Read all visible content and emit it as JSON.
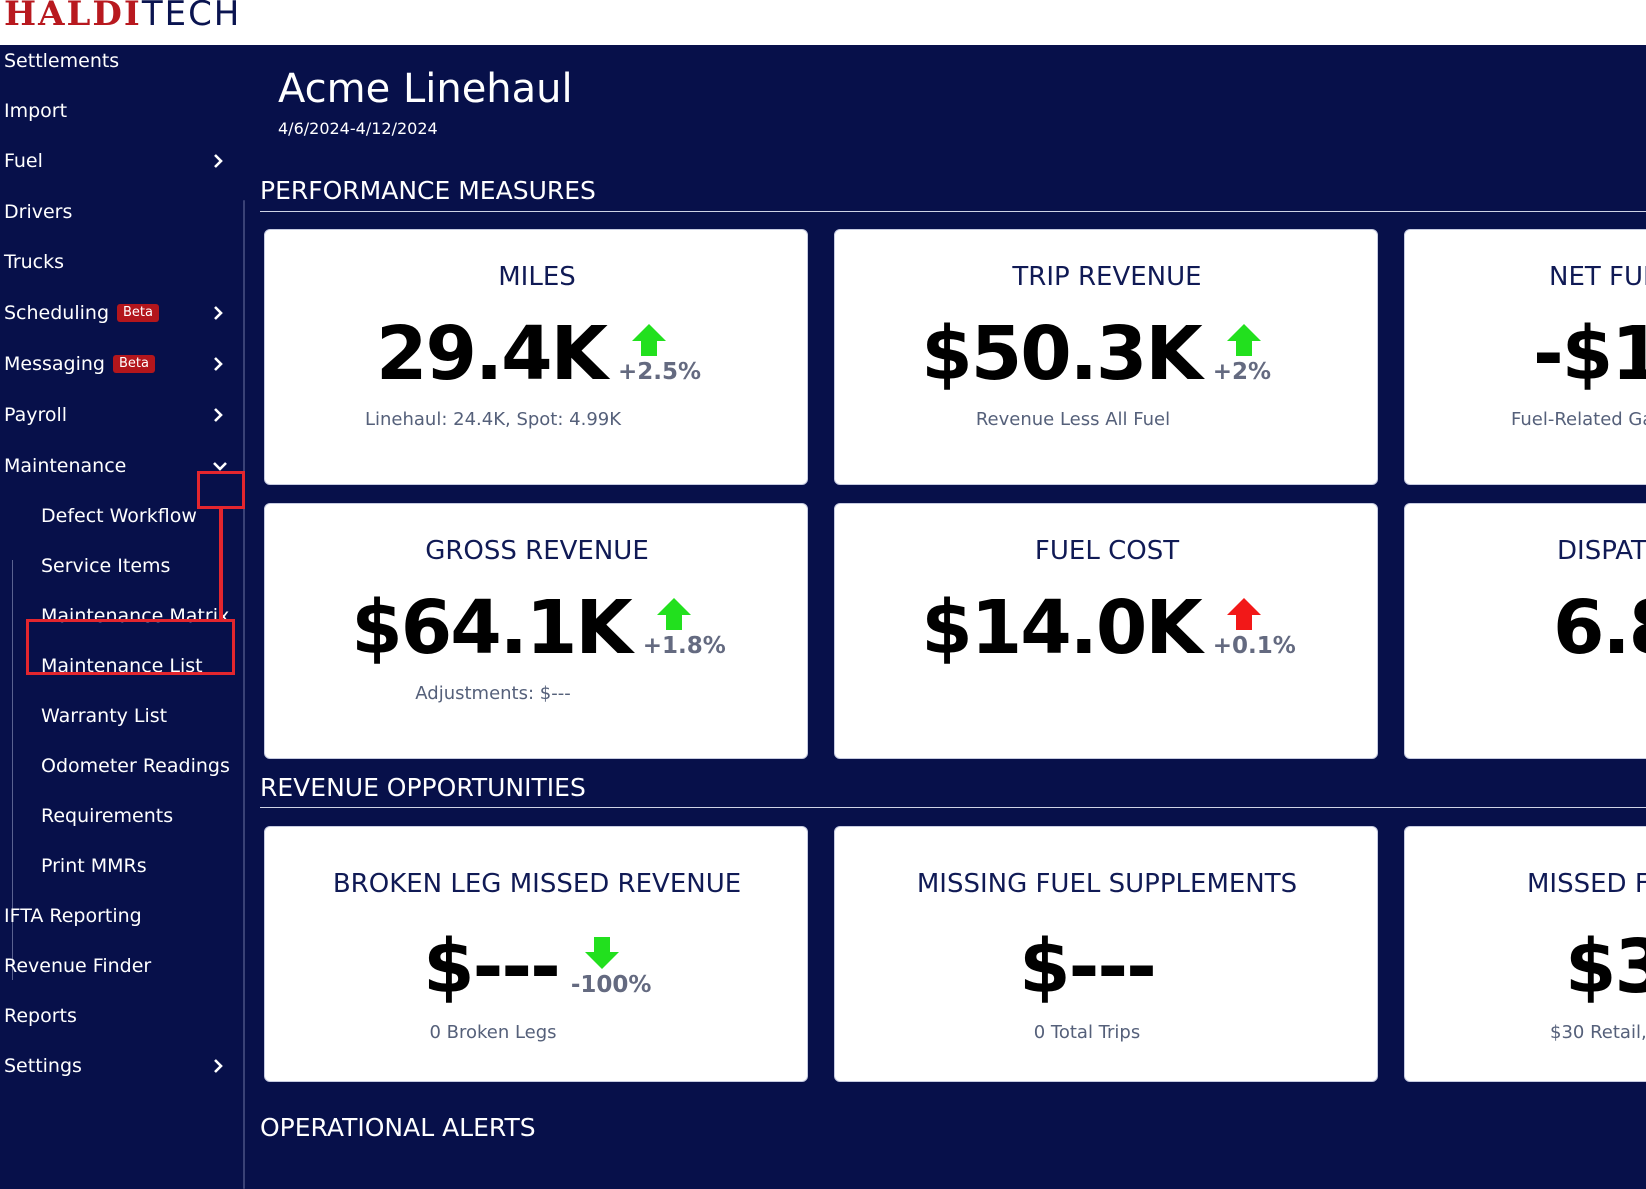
{
  "brand": {
    "part1": "HALDI",
    "part2": "TECH"
  },
  "sidebar": {
    "items": [
      {
        "label": "Settlements"
      },
      {
        "label": "Import"
      },
      {
        "label": "Fuel"
      },
      {
        "label": "Drivers"
      },
      {
        "label": "Trucks"
      },
      {
        "label": "Scheduling",
        "badge": "Beta"
      },
      {
        "label": "Messaging",
        "badge": "Beta"
      },
      {
        "label": "Payroll"
      },
      {
        "label": "Maintenance"
      },
      {
        "label": "IFTA Reporting"
      },
      {
        "label": "Revenue Finder"
      },
      {
        "label": "Reports"
      },
      {
        "label": "Settings"
      }
    ],
    "maintenance_sub": [
      {
        "label": "Defect Workflow"
      },
      {
        "label": "Service Items"
      },
      {
        "label": "Maintenance Matrix"
      },
      {
        "label": "Maintenance List"
      },
      {
        "label": "Warranty List"
      },
      {
        "label": "Odometer Readings"
      },
      {
        "label": "Requirements"
      },
      {
        "label": "Print MMRs"
      }
    ]
  },
  "header": {
    "company": "Acme Linehaul",
    "date_range": "4/6/2024-4/12/2024"
  },
  "sections": {
    "performance": "PERFORMANCE MEASURES",
    "revenue": "REVENUE OPPORTUNITIES",
    "alerts": "OPERATIONAL ALERTS"
  },
  "cards": {
    "miles": {
      "title": "MILES",
      "value": "29.4K",
      "change": "+2.5%",
      "direction": "up",
      "color": "#22e01e",
      "sub": "Linehaul: 24.4K, Spot: 4.99K"
    },
    "trip_revenue": {
      "title": "TRIP REVENUE",
      "value": "$50.3K",
      "change": "+2%",
      "direction": "up",
      "color": "#22e01e",
      "sub": "Revenue Less All Fuel"
    },
    "net_fuel": {
      "title": "NET FUEL",
      "value": "-$1",
      "sub": "Fuel-Related Ga"
    },
    "gross_revenue": {
      "title": "GROSS REVENUE",
      "value": "$64.1K",
      "change": "+1.8%",
      "direction": "up",
      "color": "#22e01e",
      "sub": "Adjustments: $---"
    },
    "fuel_cost": {
      "title": "FUEL COST",
      "value": "$14.0K",
      "change": "+0.1%",
      "direction": "up",
      "color": "#f21818",
      "sub": ""
    },
    "dispatch": {
      "title": "DISPAT",
      "value": "6.8"
    },
    "broken_leg": {
      "title": "BROKEN LEG MISSED REVENUE",
      "value": "$---",
      "change": "-100%",
      "direction": "down",
      "color": "#22e01e",
      "sub": "0 Broken Legs"
    },
    "missing_fuel": {
      "title": "MISSING FUEL SUPPLEMENTS",
      "value": "$---",
      "sub": "0 Total Trips"
    },
    "missed": {
      "title": "MISSED F",
      "value": "$3",
      "sub": "$30 Retail,"
    }
  },
  "icons": {
    "chevron_right": "chevron-right-icon",
    "chevron_down": "chevron-down-icon",
    "arrow_up": "arrow-up-icon",
    "arrow_down": "arrow-down-icon"
  }
}
